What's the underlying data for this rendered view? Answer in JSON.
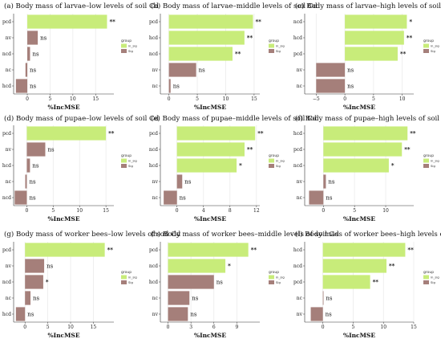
{
  "colors": {
    "in_sig": "#c8ec7a",
    "sig": "#a57f7a",
    "grid": "#ebebeb",
    "axis": "#333333"
  },
  "legend": {
    "title": "group",
    "labels": [
      "in_sig",
      "Sig"
    ]
  },
  "chart_data": [
    {
      "type": "bar",
      "orientation": "horizontal",
      "title": "(a) Body mass of larvae–low levels of soil Cd",
      "xlabel": "%IncMSE",
      "xlim": [
        -3,
        19
      ],
      "xticks": [
        "0",
        "5",
        "10",
        "15"
      ],
      "categories": [
        "pcd",
        "nv",
        "ncd",
        "nc",
        "hcd"
      ],
      "values": [
        17.5,
        2.3,
        0.6,
        -0.4,
        -2.5
      ],
      "labels": [
        "**",
        "ns",
        "ns",
        "ns",
        "ns"
      ],
      "groups": [
        "in_sig",
        "Sig",
        "Sig",
        "Sig",
        "Sig"
      ]
    },
    {
      "type": "bar",
      "orientation": "horizontal",
      "title": "(b) Body mass of larvae–middle levels of soil Cd",
      "xlabel": "%IncMSE",
      "xlim": [
        -1.5,
        16
      ],
      "xticks": [
        "0",
        "5",
        "10",
        "15"
      ],
      "categories": [
        "pcd",
        "hcd",
        "ncd",
        "nv",
        "nc"
      ],
      "values": [
        14.8,
        13.3,
        11.2,
        4.8,
        0.3
      ],
      "labels": [
        "**",
        "**",
        "**",
        "ns",
        "ns"
      ],
      "groups": [
        "in_sig",
        "in_sig",
        "in_sig",
        "Sig",
        "Sig"
      ]
    },
    {
      "type": "bar",
      "orientation": "horizontal",
      "title": "(c) Body mass of larvae–high levels of soil Cd",
      "xlabel": "%IncMSE",
      "xlim": [
        -7,
        12
      ],
      "xticks": [
        "−5",
        "0",
        "5",
        "10"
      ],
      "categories": [
        "ncd",
        "hcd",
        "pcd",
        "nv",
        "nc"
      ],
      "values": [
        10.8,
        10.3,
        9.2,
        -5.0,
        -5.0
      ],
      "labels": [
        "*",
        "**",
        "**",
        "ns",
        "ns"
      ],
      "groups": [
        "in_sig",
        "in_sig",
        "in_sig",
        "Sig",
        "Sig"
      ]
    },
    {
      "type": "bar",
      "orientation": "horizontal",
      "title": "(d) Body mass of pupae–low levels of soil Cd",
      "xlabel": "%IncMSE",
      "xlim": [
        -2.5,
        16.5
      ],
      "xticks": [
        "0",
        "5",
        "10",
        "15"
      ],
      "categories": [
        "pcd",
        "nv",
        "hcd",
        "nc",
        "ncd"
      ],
      "values": [
        15.0,
        3.5,
        0.6,
        -0.3,
        -2.3
      ],
      "labels": [
        "**",
        "ns",
        "ns",
        "ns",
        "ns"
      ],
      "groups": [
        "in_sig",
        "Sig",
        "Sig",
        "Sig",
        "Sig"
      ]
    },
    {
      "type": "bar",
      "orientation": "horizontal",
      "title": "(e) Body mass of pupae–middle levels of soil Cd",
      "xlabel": "%IncMSE",
      "xlim": [
        -2.5,
        12.5
      ],
      "xticks": [
        "0",
        "4",
        "8",
        "12"
      ],
      "categories": [
        "pcd",
        "ncd",
        "hcd",
        "nv",
        "nc"
      ],
      "values": [
        11.8,
        10.2,
        9.0,
        0.8,
        -2.0
      ],
      "labels": [
        "**",
        "**",
        "*",
        "ns",
        "ns"
      ],
      "groups": [
        "in_sig",
        "in_sig",
        "in_sig",
        "Sig",
        "Sig"
      ]
    },
    {
      "type": "bar",
      "orientation": "horizontal",
      "title": "(f) Body mass of pupae–high levels of soil Cd",
      "xlabel": "%IncMSE",
      "xlim": [
        -3,
        14.5
      ],
      "xticks": [
        "0",
        "5",
        "10"
      ],
      "categories": [
        "hcd",
        "pcd",
        "ncd",
        "nv",
        "nc"
      ],
      "values": [
        13.5,
        12.6,
        10.5,
        0.4,
        -2.3
      ],
      "labels": [
        "**",
        "**",
        "*",
        "ns",
        "ns"
      ],
      "groups": [
        "in_sig",
        "in_sig",
        "in_sig",
        "Sig",
        "Sig"
      ]
    },
    {
      "type": "bar",
      "orientation": "horizontal",
      "title": "(g) Body mass of worker bees–low levels of soil Cd",
      "xlabel": "%IncMSE",
      "xlim": [
        -2.5,
        19.5
      ],
      "xticks": [
        "0",
        "5",
        "10",
        "15"
      ],
      "categories": [
        "pcd",
        "nv",
        "ncd",
        "nc",
        "hcd"
      ],
      "values": [
        17.5,
        4.2,
        4.0,
        1.2,
        -2.0
      ],
      "labels": [
        "**",
        "ns",
        "*",
        "ns",
        "ns"
      ],
      "groups": [
        "in_sig",
        "Sig",
        "Sig",
        "Sig",
        "Sig"
      ]
    },
    {
      "type": "bar",
      "orientation": "horizontal",
      "title": "(h) Body mass of worker bees–middle levels of soil Cd",
      "xlabel": "%IncMSE",
      "xlim": [
        -1,
        12
      ],
      "xticks": [
        "0",
        "3",
        "6",
        "9"
      ],
      "categories": [
        "pcd",
        "ncd",
        "hcd",
        "nc",
        "nv"
      ],
      "values": [
        10.5,
        7.5,
        6.0,
        2.8,
        2.6
      ],
      "labels": [
        "**",
        "*",
        "ns",
        "ns",
        "ns"
      ],
      "groups": [
        "in_sig",
        "in_sig",
        "Sig",
        "Sig",
        "Sig"
      ]
    },
    {
      "type": "bar",
      "orientation": "horizontal",
      "title": "(i) Body mass of worker bees–high levels of soil Cd",
      "xlabel": "%IncMSE",
      "xlim": [
        -3,
        15
      ],
      "xticks": [
        "0",
        "5",
        "10",
        "15"
      ],
      "categories": [
        "hcd",
        "ncd",
        "pcd",
        "nc",
        "nv"
      ],
      "values": [
        13.6,
        10.5,
        7.8,
        0.1,
        -2.0
      ],
      "labels": [
        "**",
        "**",
        "**",
        "ns",
        "ns"
      ],
      "groups": [
        "in_sig",
        "in_sig",
        "in_sig",
        "Sig",
        "Sig"
      ]
    }
  ]
}
